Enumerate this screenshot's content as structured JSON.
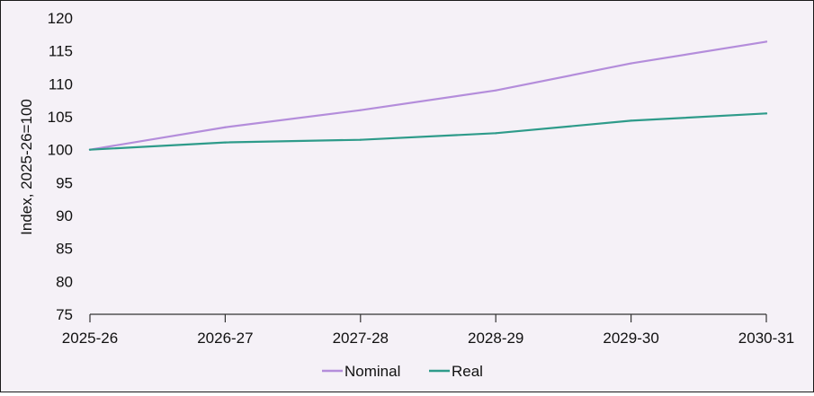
{
  "chart_data": {
    "type": "line",
    "categories": [
      "2025-26",
      "2026-27",
      "2027-28",
      "2028-29",
      "2029-30",
      "2030-31"
    ],
    "series": [
      {
        "name": "Nominal",
        "color": "#b48ddb",
        "values": [
          100,
          103.4,
          106.0,
          109.0,
          113.1,
          116.4
        ]
      },
      {
        "name": "Real",
        "color": "#2e9b8a",
        "values": [
          100,
          101.1,
          101.5,
          102.5,
          104.4,
          105.5
        ]
      }
    ],
    "ylabel": "Index, 2025-26=100",
    "xlabel": "",
    "ylim": [
      75,
      120
    ],
    "yticks": [
      75,
      80,
      85,
      90,
      95,
      100,
      105,
      110,
      115,
      120
    ],
    "grid": false,
    "legend": "bottom-center"
  }
}
